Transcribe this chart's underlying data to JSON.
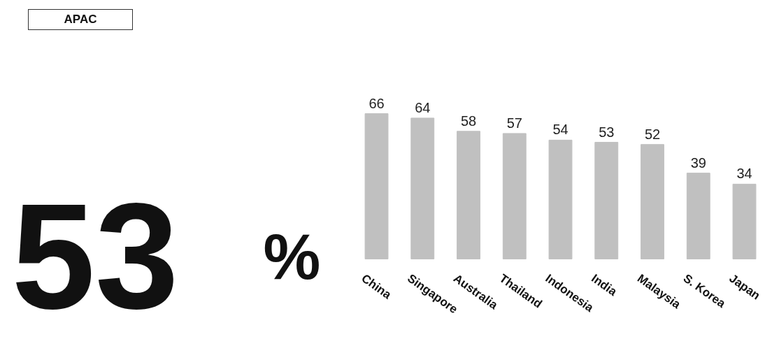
{
  "chart_data": {
    "type": "bar",
    "title": "APAC",
    "annotations": [
      "53",
      "%"
    ],
    "categories": [
      "China",
      "Singapore",
      "Australia",
      "Thailand",
      "Indonesia",
      "India",
      "Malaysia",
      "S. Korea",
      "Japan"
    ],
    "values": [
      66,
      64,
      58,
      57,
      54,
      53,
      52,
      39,
      34
    ],
    "color": "#c0c0c0",
    "data_labels": true,
    "grid": false
  }
}
